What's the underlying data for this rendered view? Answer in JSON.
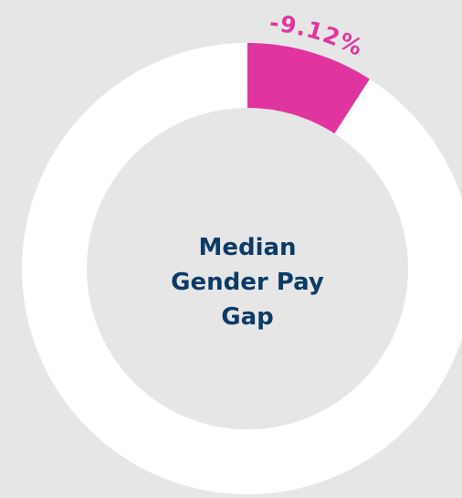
{
  "chart_data": {
    "type": "donut",
    "title": "Median Gender Pay Gap",
    "values": [
      -9.12
    ],
    "value_labels": [
      "-9.12%"
    ],
    "color": "#e0359f"
  }
}
